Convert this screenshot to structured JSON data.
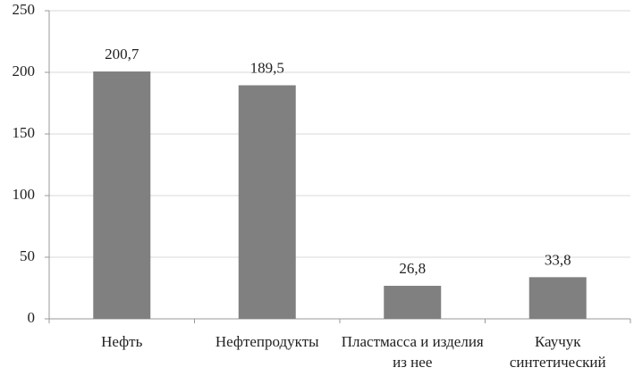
{
  "chart_data": {
    "type": "bar",
    "categories": [
      "Нефть",
      "Нефтепродукты",
      "Пластмасса и изделия из нее",
      "Каучук синтетический"
    ],
    "values": [
      200.7,
      189.5,
      26.8,
      33.8
    ],
    "value_labels": [
      "200,7",
      "189,5",
      "26,8",
      "33,8"
    ],
    "color": "#808080",
    "ylim": [
      0,
      250
    ],
    "yticks": [
      0,
      50,
      100,
      150,
      200,
      250
    ],
    "grid": true
  }
}
